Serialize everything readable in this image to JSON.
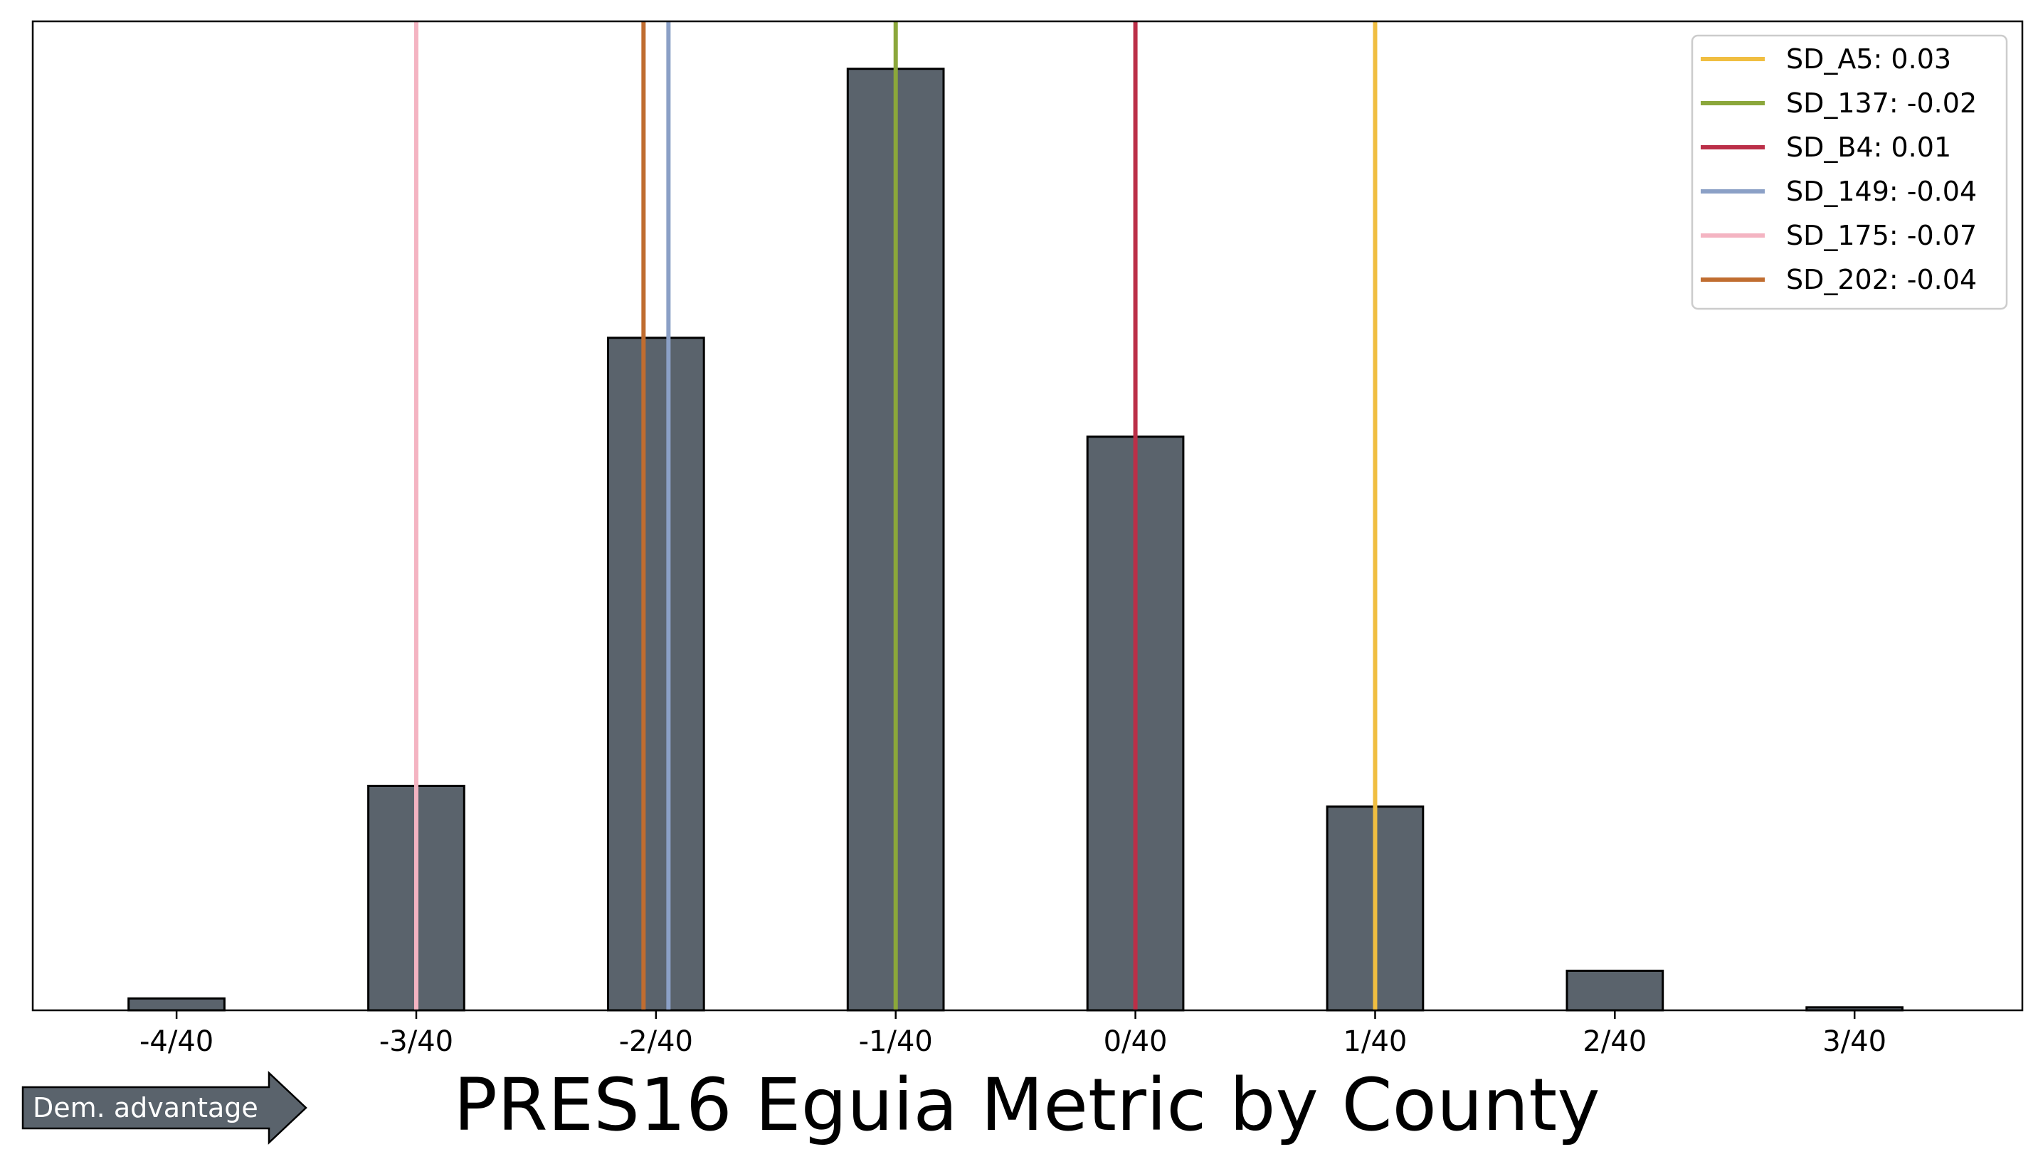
{
  "chart_data": {
    "type": "bar",
    "title": "PRES16 Eguia Metric by County",
    "xlabel": "",
    "ylabel": "",
    "bin_width": 0.0125,
    "xlim": [
      -0.115,
      0.0925
    ],
    "ylim": [
      0,
      100
    ],
    "bars": [
      {
        "x": -0.1,
        "value": 1.2
      },
      {
        "x": -0.0875,
        "value": 0.0
      },
      {
        "x": -0.075,
        "value": 22.7
      },
      {
        "x": -0.0625,
        "value": 0.0
      },
      {
        "x": -0.05,
        "value": 68.0
      },
      {
        "x": -0.0375,
        "value": 0.0
      },
      {
        "x": -0.025,
        "value": 95.2
      },
      {
        "x": -0.0125,
        "value": 0.0
      },
      {
        "x": 0.0,
        "value": 58.0
      },
      {
        "x": 0.0125,
        "value": 0.0
      },
      {
        "x": 0.025,
        "value": 20.6
      },
      {
        "x": 0.0375,
        "value": 0.0
      },
      {
        "x": 0.05,
        "value": 4.0
      },
      {
        "x": 0.0625,
        "value": 0.0
      },
      {
        "x": 0.075,
        "value": 0.3
      }
    ],
    "xticks": [
      {
        "value": -0.1,
        "label": "-4/40"
      },
      {
        "value": -0.075,
        "label": "-3/40"
      },
      {
        "value": -0.05,
        "label": "-2/40"
      },
      {
        "value": -0.025,
        "label": "-1/40"
      },
      {
        "value": 0.0,
        "label": "0/40"
      },
      {
        "value": 0.025,
        "label": "1/40"
      },
      {
        "value": 0.05,
        "label": "2/40"
      },
      {
        "value": 0.075,
        "label": "3/40"
      }
    ],
    "vlines": [
      {
        "name": "SD_A5",
        "label": "SD_A5: 0.03",
        "x": 0.025,
        "color": "#f0be41"
      },
      {
        "name": "SD_137",
        "label": "SD_137: -0.02",
        "x": -0.025,
        "color": "#8ba73b"
      },
      {
        "name": "SD_B4",
        "label": "SD_B4: 0.01",
        "x": 0.0,
        "color": "#bb2f48"
      },
      {
        "name": "SD_149",
        "label": "SD_149: -0.04",
        "x": -0.0487,
        "color": "#8ba0c6"
      },
      {
        "name": "SD_175",
        "label": "SD_175: -0.07",
        "x": -0.075,
        "color": "#f4b4c2"
      },
      {
        "name": "SD_202",
        "label": "SD_202: -0.04",
        "x": -0.0513,
        "color": "#c06d30"
      }
    ],
    "bar_color": "#5a636c",
    "legend_position": "top-right",
    "grid": false
  },
  "annotation": {
    "arrow_label": "Dem. advantage",
    "arrow_color": "#5a636c"
  }
}
